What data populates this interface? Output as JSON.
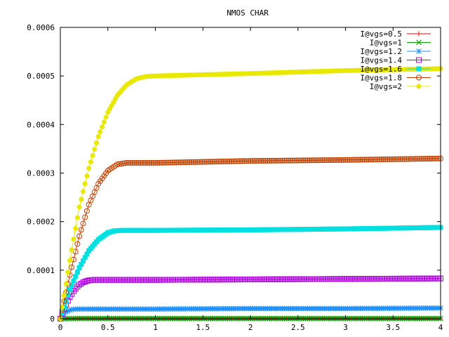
{
  "chart_data": {
    "type": "line",
    "title": "NMOS CHAR",
    "xlabel": "",
    "ylabel": "",
    "xlim": [
      0,
      4
    ],
    "ylim": [
      0,
      0.0006
    ],
    "grid": false,
    "legend_position": "top-right",
    "x_ticks": [
      "0",
      "0.5",
      "1",
      "1.5",
      "2",
      "2.5",
      "3",
      "3.5",
      "4"
    ],
    "y_ticks": [
      "0",
      "0.0001",
      "0.0002",
      "0.0003",
      "0.0004",
      "0.0005",
      "0.0006"
    ],
    "series": [
      {
        "name": "I@vgs=0.5",
        "color": "#ff0000",
        "marker": "plus",
        "points": [
          [
            0,
            0
          ],
          [
            4,
            0
          ]
        ]
      },
      {
        "name": "I@vgs=1",
        "color": "#00a000",
        "marker": "x",
        "points": [
          [
            0,
            0
          ],
          [
            0.2,
            5e-07
          ],
          [
            4,
            6e-07
          ]
        ]
      },
      {
        "name": "I@vgs=1.2",
        "color": "#1e90ff",
        "marker": "star",
        "points": [
          [
            0,
            0
          ],
          [
            0.03,
            8e-06
          ],
          [
            0.06,
            1.4e-05
          ],
          [
            0.1,
            1.8e-05
          ],
          [
            0.15,
            2e-05
          ],
          [
            0.3,
            2e-05
          ],
          [
            1,
            2e-05
          ],
          [
            2,
            2.1e-05
          ],
          [
            3,
            2.1e-05
          ],
          [
            4,
            2.2e-05
          ]
        ]
      },
      {
        "name": "I@vgs=1.4",
        "color": "#b000e0",
        "marker": "square",
        "points": [
          [
            0,
            0
          ],
          [
            0.05,
            2.5e-05
          ],
          [
            0.1,
            4.5e-05
          ],
          [
            0.15,
            6e-05
          ],
          [
            0.2,
            7e-05
          ],
          [
            0.25,
            7.6e-05
          ],
          [
            0.3,
            7.9e-05
          ],
          [
            0.35,
            8e-05
          ],
          [
            1,
            8e-05
          ],
          [
            2,
            8.1e-05
          ],
          [
            3,
            8.2e-05
          ],
          [
            4,
            8.3e-05
          ]
        ]
      },
      {
        "name": "I@vgs=1.6",
        "color": "#00e0e0",
        "marker": "filled-square",
        "points": [
          [
            0,
            0
          ],
          [
            0.1,
            6e-05
          ],
          [
            0.2,
            0.000105
          ],
          [
            0.3,
            0.00014
          ],
          [
            0.4,
            0.000163
          ],
          [
            0.5,
            0.000177
          ],
          [
            0.57,
            0.000181
          ],
          [
            0.65,
            0.000182
          ],
          [
            1,
            0.000182
          ],
          [
            2,
            0.000183
          ],
          [
            3,
            0.000185
          ],
          [
            4,
            0.000188
          ]
        ]
      },
      {
        "name": "I@vgs=1.8",
        "color": "#c04000",
        "marker": "circle",
        "points": [
          [
            0,
            0
          ],
          [
            0.1,
            9e-05
          ],
          [
            0.2,
            0.00017
          ],
          [
            0.3,
            0.000235
          ],
          [
            0.4,
            0.000278
          ],
          [
            0.5,
            0.000305
          ],
          [
            0.6,
            0.000318
          ],
          [
            0.7,
            0.000321
          ],
          [
            1,
            0.000321
          ],
          [
            2,
            0.000325
          ],
          [
            3,
            0.000327
          ],
          [
            4,
            0.00033
          ]
        ]
      },
      {
        "name": "I@vgs=2",
        "color": "#e8e800",
        "marker": "filled-circle",
        "points": [
          [
            0,
            0
          ],
          [
            0.1,
            0.00012
          ],
          [
            0.2,
            0.00023
          ],
          [
            0.3,
            0.00031
          ],
          [
            0.4,
            0.000375
          ],
          [
            0.5,
            0.000425
          ],
          [
            0.6,
            0.00046
          ],
          [
            0.7,
            0.000482
          ],
          [
            0.8,
            0.000494
          ],
          [
            0.9,
            0.000499
          ],
          [
            1,
            0.0005
          ],
          [
            2,
            0.000505
          ],
          [
            3,
            0.000511
          ],
          [
            4,
            0.000515
          ]
        ]
      }
    ]
  }
}
